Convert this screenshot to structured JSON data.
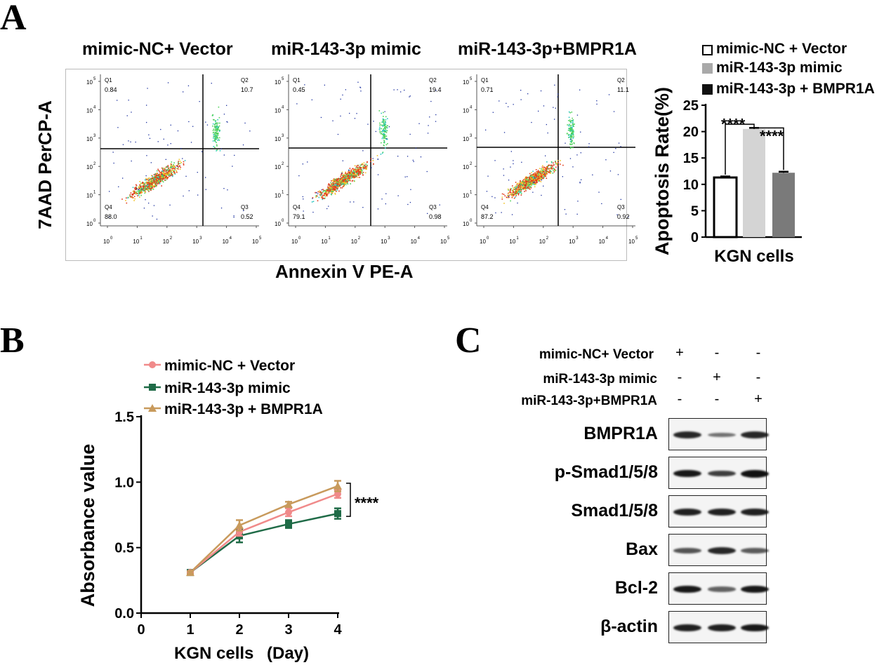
{
  "panels": {
    "a": "A",
    "b": "B",
    "c": "C"
  },
  "flow": {
    "y_axis_label": "7AAD PerCP-A",
    "x_axis_label": "Annexin V PE-A",
    "y_ticks": [
      "10",
      "10",
      "10",
      "10",
      "10",
      "10"
    ],
    "y_exps": [
      "5",
      "4",
      "3",
      "2",
      "1",
      "0"
    ],
    "x_ticks": [
      "10",
      "10",
      "10",
      "10",
      "10",
      "10"
    ],
    "x_exps": [
      "0",
      "1",
      "2",
      "3",
      "4",
      "5"
    ],
    "plots": [
      {
        "title": "mimic-NC+ Vector",
        "q1": "Q1",
        "q1v": "0.84",
        "q2": "Q2",
        "q2v": "10.7",
        "q3": "Q3",
        "q3v": "0.52",
        "q4": "Q4",
        "q4v": "88.0"
      },
      {
        "title": "miR-143-3p mimic",
        "q1": "Q1",
        "q1v": "0.45",
        "q2": "Q2",
        "q2v": "19.4",
        "q3": "Q3",
        "q3v": "0.98",
        "q4": "Q4",
        "q4v": "79.1"
      },
      {
        "title": "miR-143-3p+BMPR1A",
        "q1": "Q1",
        "q1v": "0.71",
        "q2": "Q2",
        "q2v": "11.1",
        "q3": "Q3",
        "q3v": "0.92",
        "q4": "Q4",
        "q4v": "87.2"
      }
    ]
  },
  "chart_data": [
    {
      "type": "bar",
      "title": "",
      "ylabel": "Apoptosis Rate(%)",
      "xlabel": "KGN cells",
      "ylim": [
        0,
        25
      ],
      "yticks": [
        "0",
        "5",
        "10",
        "15",
        "20",
        "25"
      ],
      "series": [
        {
          "name": "mimic-NC + Vector",
          "value": 11.3,
          "error": 0.2,
          "color": "#ffffff"
        },
        {
          "name": "miR-143-3p mimic",
          "value": 20.5,
          "error": 0.2,
          "color": "#d4d4d4"
        },
        {
          "name": "miR-143-3p + BMPR1A",
          "value": 12.2,
          "error": 0.2,
          "color": "#7a7a7a"
        }
      ],
      "legend_colors": [
        "#ffffff",
        "#a9a9a9",
        "#111111"
      ],
      "annotations": [
        "****",
        "****"
      ]
    },
    {
      "type": "line",
      "title": "",
      "ylabel": "Absorbance value",
      "xlabel": "KGN cells",
      "xlabel_unit": "(Day)",
      "xlim": [
        0,
        4
      ],
      "ylim": [
        0,
        1.5
      ],
      "xticks": [
        "0",
        "1",
        "2",
        "3",
        "4"
      ],
      "yticks": [
        "0.0",
        "0.5",
        "1.0",
        "1.5"
      ],
      "x": [
        1,
        2,
        3,
        4
      ],
      "series": [
        {
          "name": "mimic-NC + Vector",
          "values": [
            0.31,
            0.62,
            0.77,
            0.91
          ],
          "errors": [
            0.01,
            0.03,
            0.03,
            0.03
          ],
          "color": "#f08a8a",
          "marker": "circle"
        },
        {
          "name": "miR-143-3p mimic",
          "values": [
            0.31,
            0.59,
            0.68,
            0.76
          ],
          "errors": [
            0.01,
            0.05,
            0.03,
            0.04
          ],
          "color": "#1f6b47",
          "marker": "square"
        },
        {
          "name": "miR-143-3p + BMPR1A",
          "values": [
            0.31,
            0.67,
            0.83,
            0.97
          ],
          "errors": [
            0.01,
            0.04,
            0.02,
            0.04
          ],
          "color": "#c89a5c",
          "marker": "triangle"
        }
      ],
      "annotation": "****"
    }
  ],
  "western": {
    "conditions": [
      {
        "label": "mimic-NC+ Vector",
        "signs": [
          "+",
          "-",
          "-"
        ]
      },
      {
        "label": "miR-143-3p mimic",
        "signs": [
          "-",
          "+",
          "-"
        ]
      },
      {
        "label": "miR-143-3p+BMPR1A",
        "signs": [
          "-",
          "-",
          "+"
        ]
      }
    ],
    "proteins": [
      {
        "label": "BMPR1A",
        "intensity": [
          0.85,
          0.35,
          0.85
        ]
      },
      {
        "label": "p-Smad1/5/8",
        "intensity": [
          0.95,
          0.7,
          1.0
        ]
      },
      {
        "label": "Smad1/5/8",
        "intensity": [
          0.9,
          0.9,
          0.9
        ]
      },
      {
        "label": "Bax",
        "intensity": [
          0.55,
          0.85,
          0.5
        ]
      },
      {
        "label": "Bcl-2",
        "intensity": [
          0.95,
          0.45,
          0.95
        ]
      },
      {
        "label": "β-actin",
        "intensity": [
          0.9,
          0.9,
          0.95
        ]
      }
    ]
  }
}
